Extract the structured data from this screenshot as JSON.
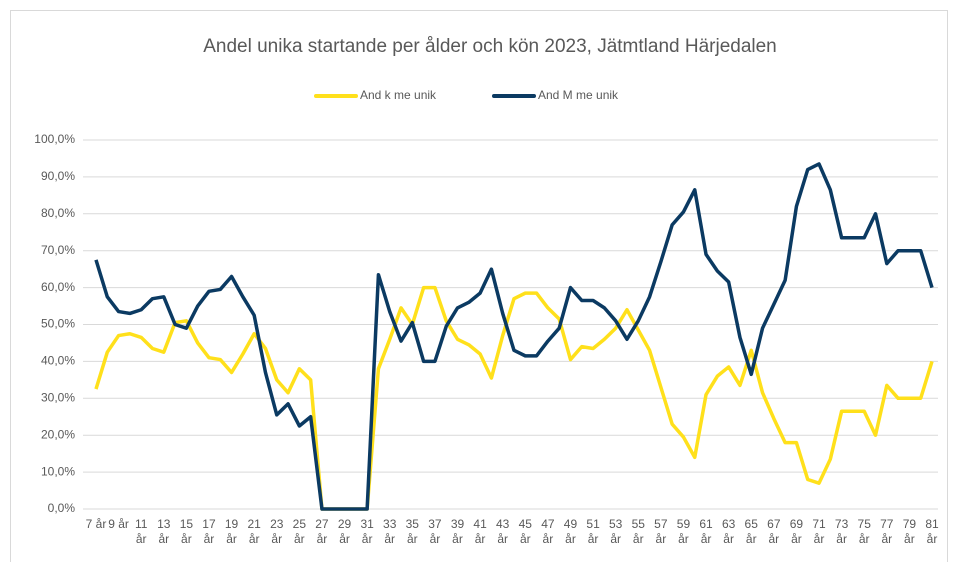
{
  "chart_data": {
    "type": "line",
    "title": "Andel unika startande per ålder och kön 2023, Jätmtland Härjedalen",
    "categories": [
      "7 år",
      null,
      "9 år",
      null,
      "11 år",
      null,
      "13 år",
      null,
      "15 år",
      null,
      "17 år",
      null,
      "19 år",
      null,
      "21 år",
      null,
      "23 år",
      null,
      "25 år",
      null,
      "27 år",
      null,
      "29 år",
      null,
      "31 år",
      null,
      "33 år",
      null,
      "35 år",
      null,
      "37 år",
      null,
      "39 år",
      null,
      "41 år",
      null,
      "43 år",
      null,
      "45 år",
      null,
      "47 år",
      null,
      "49 år",
      null,
      "51 år",
      null,
      "53 år",
      null,
      "55 år",
      null,
      "57 år",
      null,
      "59 år",
      null,
      "61 år",
      null,
      "63 år",
      null,
      "65 år",
      null,
      "67 år",
      null,
      "69 år",
      null,
      "71 år",
      null,
      "73 år",
      null,
      "75 år",
      null,
      "77 år",
      null,
      "79 år",
      null,
      "81 år"
    ],
    "series": [
      {
        "name": "And k me unik",
        "color": "#ffe01b",
        "values": [
          32.5,
          42.5,
          47,
          47.5,
          46.5,
          43.5,
          42.5,
          50.5,
          51,
          45,
          41,
          40.5,
          37,
          42,
          47.5,
          43.5,
          35,
          31.5,
          38,
          35,
          0,
          0,
          0,
          0,
          0,
          38,
          46,
          54.5,
          50,
          60,
          60,
          51,
          46,
          44.5,
          42,
          35.5,
          47,
          57,
          58.5,
          58.5,
          54.5,
          51.5,
          40.5,
          44,
          43.5,
          46,
          49,
          54,
          48.5,
          43,
          33,
          23,
          19.5,
          14,
          31,
          36,
          38.5,
          33.5,
          43,
          31.5,
          24.5,
          18,
          18,
          8,
          7,
          13.5,
          26.5,
          26.5,
          26.5,
          20,
          33.5,
          30,
          30,
          30,
          40
        ]
      },
      {
        "name": "And M me unik",
        "color": "#0b3a62",
        "values": [
          67.5,
          57.5,
          53.5,
          53,
          54,
          57,
          57.5,
          50,
          49,
          55,
          59,
          59.5,
          63,
          57.5,
          52.5,
          37,
          25.5,
          28.5,
          22.5,
          25,
          0,
          0,
          0,
          0,
          0,
          63.5,
          53.5,
          45.5,
          50.5,
          40,
          40,
          49.5,
          54.5,
          56,
          58.5,
          65,
          53,
          43,
          41.5,
          41.5,
          45.5,
          49,
          60,
          56.5,
          56.5,
          54.5,
          51,
          46,
          51,
          57.5,
          67,
          77,
          80.5,
          86.5,
          69,
          64.5,
          61.5,
          46.5,
          36.5,
          49,
          55.5,
          62,
          82,
          92,
          93.5,
          86.5,
          73.5,
          73.5,
          73.5,
          80,
          66.5,
          70,
          70,
          70,
          60
        ]
      }
    ],
    "ylim": [
      0,
      100
    ],
    "yticks": [
      {
        "value": 0,
        "label": "0,0%"
      },
      {
        "value": 10,
        "label": "10,0%"
      },
      {
        "value": 20,
        "label": "20,0%"
      },
      {
        "value": 30,
        "label": "30,0%"
      },
      {
        "value": 40,
        "label": "40,0%"
      },
      {
        "value": 50,
        "label": "50,0%"
      },
      {
        "value": 60,
        "label": "60,0%"
      },
      {
        "value": 70,
        "label": "70,0%"
      },
      {
        "value": 80,
        "label": "80,0%"
      },
      {
        "value": 90,
        "label": "90,0%"
      },
      {
        "value": 100,
        "label": "100,0%"
      }
    ],
    "grid": true,
    "legend": "top"
  }
}
